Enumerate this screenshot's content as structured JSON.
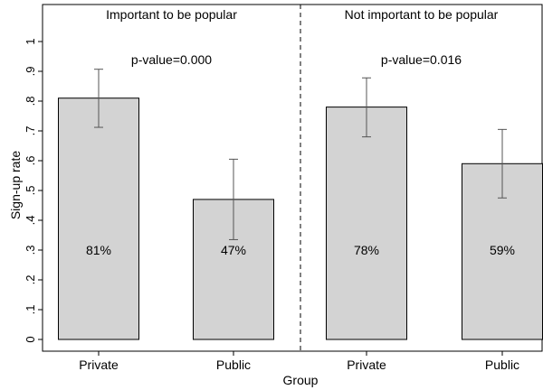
{
  "chart_data": {
    "type": "bar",
    "xlabel": "Group",
    "ylabel": "Sign-up rate",
    "ylim": [
      0,
      1
    ],
    "yticks": [
      {
        "value": 0,
        "label": "0"
      },
      {
        "value": 0.1,
        "label": ".1"
      },
      {
        "value": 0.2,
        "label": ".2"
      },
      {
        "value": 0.3,
        "label": ".3"
      },
      {
        "value": 0.4,
        "label": ".4"
      },
      {
        "value": 0.5,
        "label": ".5"
      },
      {
        "value": 0.6,
        "label": ".6"
      },
      {
        "value": 0.7,
        "label": ".7"
      },
      {
        "value": 0.8,
        "label": ".8"
      },
      {
        "value": 0.9,
        "label": ".9"
      },
      {
        "value": 1,
        "label": "1"
      }
    ],
    "bar_color": "#d3d3d3",
    "grid": false,
    "panels": [
      {
        "title": "Important to be popular",
        "annotation": "p-value=0.000",
        "bars": [
          {
            "category": "Private",
            "value": 0.81,
            "ci_low": 0.712,
            "ci_high": 0.907,
            "label": "81%"
          },
          {
            "category": "Public",
            "value": 0.47,
            "ci_low": 0.335,
            "ci_high": 0.605,
            "label": "47%"
          }
        ]
      },
      {
        "title": "Not important to be popular",
        "annotation": "p-value=0.016",
        "bars": [
          {
            "category": "Private",
            "value": 0.78,
            "ci_low": 0.68,
            "ci_high": 0.878,
            "label": "78%"
          },
          {
            "category": "Public",
            "value": 0.59,
            "ci_low": 0.475,
            "ci_high": 0.705,
            "label": "59%"
          }
        ]
      }
    ]
  }
}
